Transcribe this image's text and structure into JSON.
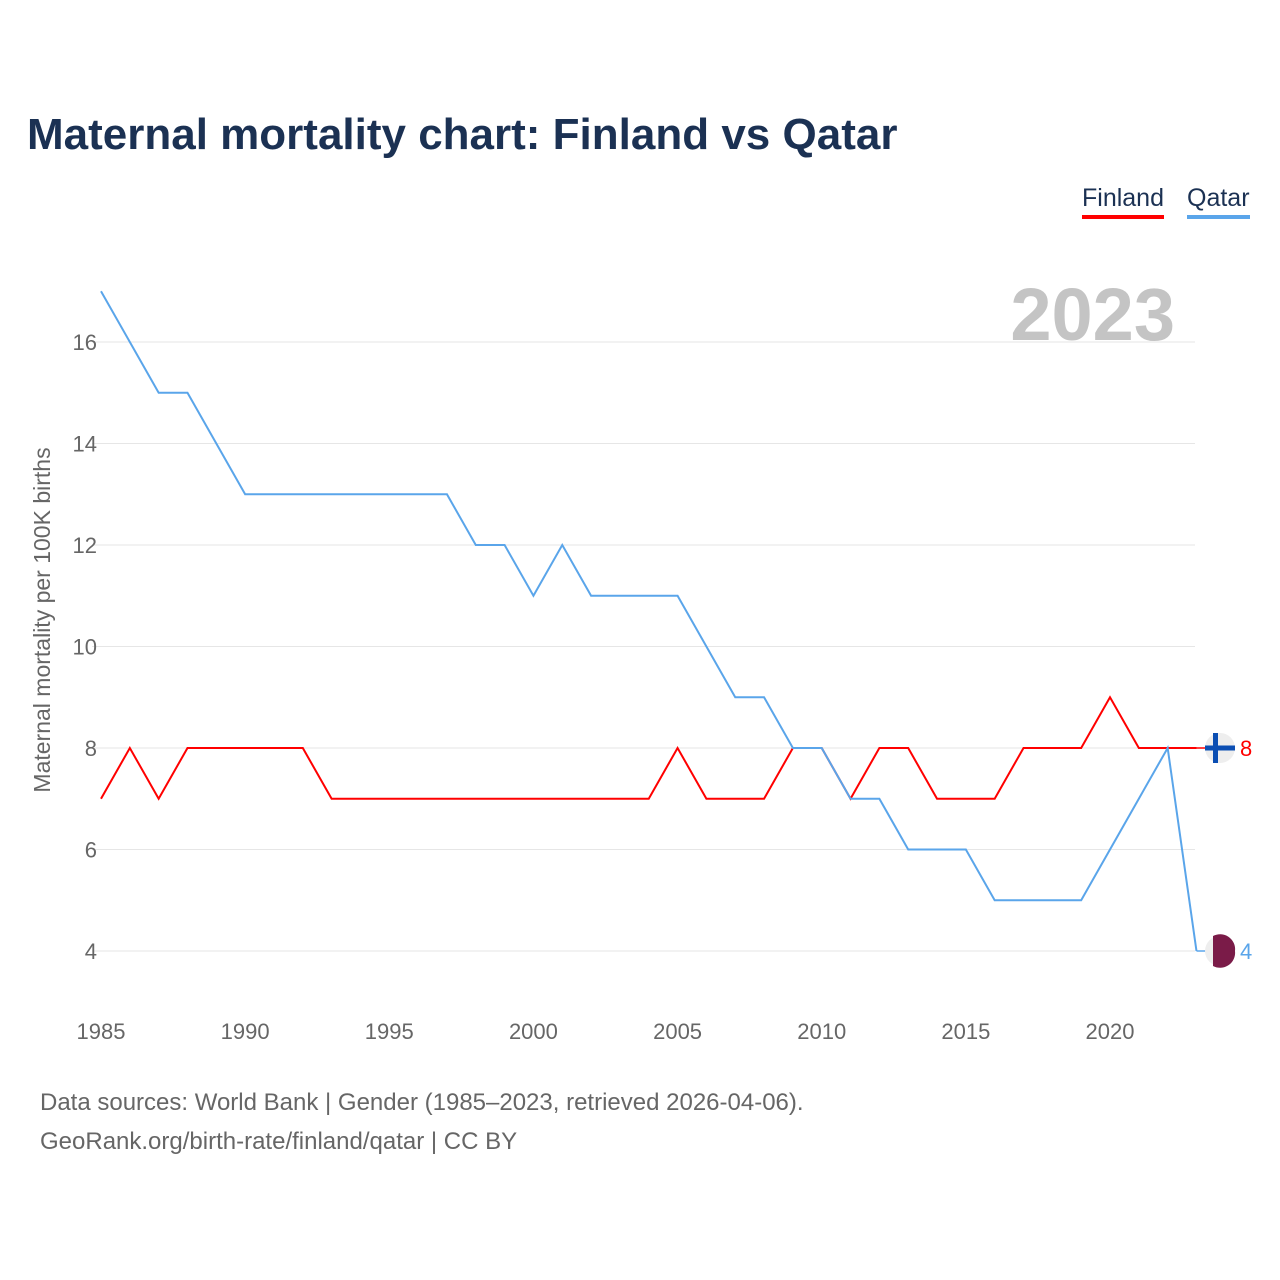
{
  "title": "Maternal mortality chart: Finland vs Qatar",
  "footer": {
    "line1": "Data sources: World Bank | Gender (1985–2023, retrieved 2026-04-06).",
    "line2": "GeoRank.org/birth-rate/finland/qatar | CC BY"
  },
  "chart_data": {
    "type": "line",
    "title": "Maternal mortality chart: Finland vs Qatar",
    "year_label": "2023",
    "xlabel": "",
    "ylabel": "Maternal mortality per 100K births",
    "xlim": [
      1985,
      2023
    ],
    "ylim": [
      3,
      17
    ],
    "x_ticks": [
      1985,
      1990,
      1995,
      2000,
      2005,
      2010,
      2015,
      2020
    ],
    "y_ticks": [
      4,
      6,
      8,
      10,
      12,
      14,
      16
    ],
    "grid": true,
    "legend_position": "top-right",
    "x": [
      1985,
      1986,
      1987,
      1988,
      1989,
      1990,
      1991,
      1992,
      1993,
      1994,
      1995,
      1996,
      1997,
      1998,
      1999,
      2000,
      2001,
      2002,
      2003,
      2004,
      2005,
      2006,
      2007,
      2008,
      2009,
      2010,
      2011,
      2012,
      2013,
      2014,
      2015,
      2016,
      2017,
      2018,
      2019,
      2020,
      2021,
      2022,
      2023
    ],
    "series": [
      {
        "name": "Finland",
        "color": "#ff0000",
        "end_label": "8",
        "flag": "finland-flag",
        "values": [
          7,
          8,
          7,
          8,
          8,
          8,
          8,
          8,
          7,
          7,
          7,
          7,
          7,
          7,
          7,
          7,
          7,
          7,
          7,
          7,
          8,
          7,
          7,
          7,
          8,
          8,
          7,
          8,
          8,
          7,
          7,
          7,
          8,
          8,
          8,
          9,
          8,
          8,
          8
        ]
      },
      {
        "name": "Qatar",
        "color": "#5aa5ea",
        "end_label": "4",
        "flag": "qatar-flag",
        "values": [
          17,
          16,
          15,
          15,
          14,
          13,
          13,
          13,
          13,
          13,
          13,
          13,
          13,
          12,
          12,
          11,
          12,
          11,
          11,
          11,
          11,
          10,
          9,
          9,
          8,
          8,
          7,
          7,
          6,
          6,
          6,
          5,
          5,
          5,
          5,
          6,
          7,
          8,
          4
        ]
      }
    ]
  }
}
